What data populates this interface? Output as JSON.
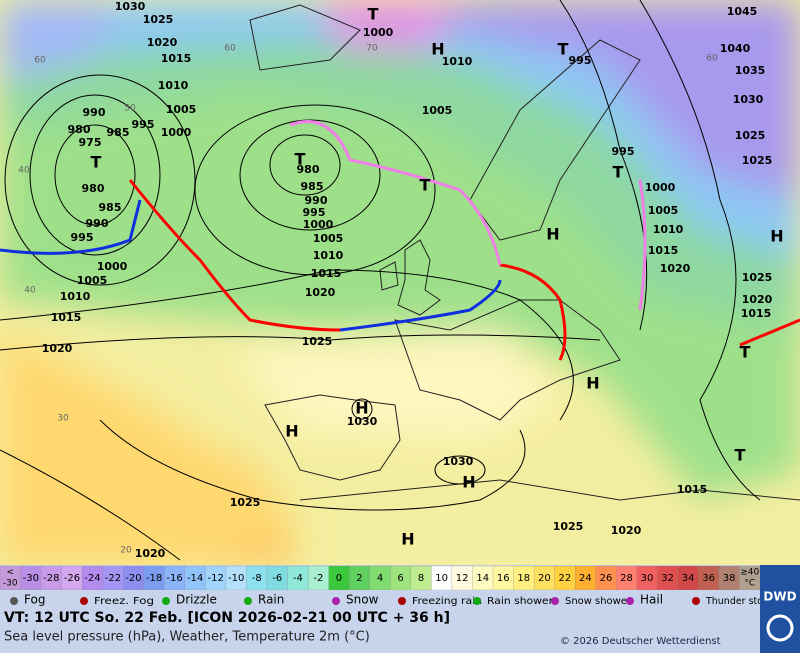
{
  "map": {
    "pressure_labels": [
      1030,
      1025,
      1020,
      1015,
      1010,
      1005,
      1000,
      995,
      990,
      985,
      980,
      975,
      980,
      985,
      990,
      995,
      1000,
      1005,
      1010,
      1015,
      1020,
      980,
      985,
      990,
      995,
      1000,
      1005,
      1010,
      1015,
      1020,
      1025,
      1000,
      1010,
      1005,
      995,
      1045,
      1040,
      1035,
      1030,
      1025,
      1025,
      995,
      1000,
      1005,
      1010,
      1015,
      1020,
      1025,
      1020,
      1015,
      1030,
      1030,
      1025,
      1025,
      1020,
      1015,
      1020
    ],
    "isotherm_labels": [
      60,
      50,
      40,
      40,
      30,
      20,
      60,
      70,
      60
    ],
    "centers": [
      "T",
      "H",
      "T",
      "T",
      "T",
      "T",
      "H",
      "T",
      "H",
      "T",
      "H",
      "H",
      "H",
      "H",
      "H",
      "T"
    ]
  },
  "legend": {
    "temperature": {
      "low": {
        "symbol": "<",
        "value": -30
      },
      "values": [
        -30,
        -28,
        -26,
        -24,
        -22,
        -20,
        -18,
        -16,
        -14,
        -12,
        -10,
        -8,
        -6,
        -4,
        -2,
        0,
        2,
        4,
        6,
        8,
        10,
        12,
        14,
        16,
        18,
        20,
        22,
        24,
        26,
        28,
        30,
        32,
        34,
        36,
        38
      ],
      "high": {
        "symbol": "≥40",
        "unit": "°C"
      },
      "colors": [
        "#c49ad8",
        "#b98fe6",
        "#c79be8",
        "#d3a8ee",
        "#b48cf0",
        "#a596f4",
        "#8c8ef0",
        "#7c9cf0",
        "#8cb4f8",
        "#90c4fa",
        "#a0d4fc",
        "#b4e0fc",
        "#8ce0f0",
        "#80dce0",
        "#90e8d8",
        "#a8f0d0",
        "#3cc83c",
        "#60d060",
        "#80dc70",
        "#a0e480",
        "#c0ec90",
        "#ffffff",
        "#fffae0",
        "#fffac0",
        "#fff8a0",
        "#fff080",
        "#ffe060",
        "#ffd040",
        "#ffb030",
        "#ff9050",
        "#ff8070",
        "#f06060",
        "#e05050",
        "#d04848",
        "#c06050",
        "#b08070",
        "#b0a090"
      ]
    },
    "weather": [
      "Fog",
      "Freez. Fog",
      "Drizzle",
      "Rain",
      "Snow",
      "Freezing rain",
      "Rain shower",
      "Snow shower",
      "Hail",
      "Thunder storm"
    ]
  },
  "footer": {
    "valid_time": "VT: 12 UTC So.  22 Feb. [ICON 2026-02-21  00 UTC + 36 h]",
    "description": "Sea level pressure (hPa), Weather, Temperature 2m (°C)",
    "copyright": "© 2026 Deutscher Wetterdienst",
    "logo": "DWD"
  }
}
